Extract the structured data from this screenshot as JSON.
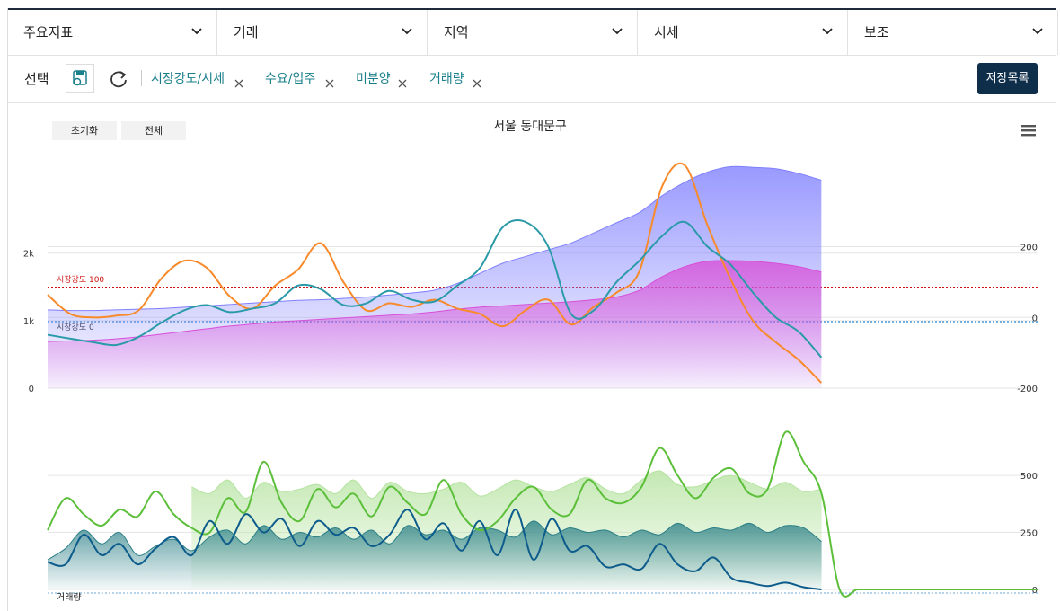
{
  "tabs": [
    "주요지표",
    "거래",
    "지역",
    "시세",
    "보조"
  ],
  "toolbar": {
    "label": "선택",
    "chips": [
      "시장강도/시세",
      "수요/입주",
      "미분양",
      "거래량"
    ],
    "save": "저장목록"
  },
  "chart_buttons": [
    "초기화",
    "전체"
  ],
  "chart_data": [
    {
      "type": "line",
      "title": "서울 동대문구",
      "x": [
        0,
        1,
        2,
        3,
        4,
        5,
        6,
        7,
        8,
        9,
        10,
        11,
        12,
        13,
        14,
        15,
        16,
        17,
        18,
        19,
        20,
        21,
        22,
        23,
        24,
        25,
        26,
        27,
        28,
        29,
        30,
        31,
        32,
        33,
        34
      ],
      "xlim": [
        0,
        43.5
      ],
      "ylim": [
        0,
        3300
      ],
      "yticks": [
        0,
        {
          "value": 1000,
          "label": "1k"
        },
        {
          "value": 2000,
          "label": "2k"
        }
      ],
      "y2lim": [
        -200,
        430
      ],
      "y2ticks": [
        -200,
        0,
        200
      ],
      "grid": true,
      "annotations": [
        {
          "label": "시장강도 100",
          "y2": 85,
          "color": "#d01010"
        },
        {
          "label": "시장강도 0",
          "y2": -12,
          "color": "#4a9ad8"
        }
      ],
      "series": [
        {
          "kind": "area",
          "color": "#8080ff",
          "values": [
            1160,
            1150,
            1150,
            1160,
            1170,
            1180,
            1200,
            1220,
            1240,
            1260,
            1280,
            1300,
            1310,
            1330,
            1350,
            1380,
            1410,
            1450,
            1550,
            1700,
            1850,
            1950,
            2050,
            2150,
            2300,
            2450,
            2600,
            2850,
            3050,
            3200,
            3280,
            3270,
            3250,
            3180,
            3080
          ]
        },
        {
          "kind": "area",
          "color": "#d84fd8",
          "values": [
            690,
            700,
            710,
            730,
            760,
            800,
            840,
            880,
            920,
            950,
            980,
            1000,
            1020,
            1040,
            1060,
            1080,
            1100,
            1130,
            1170,
            1200,
            1220,
            1240,
            1260,
            1280,
            1310,
            1350,
            1450,
            1650,
            1800,
            1880,
            1890,
            1880,
            1850,
            1800,
            1720
          ]
        },
        {
          "kind": "line",
          "axis": "y2",
          "color": "#f78a2a",
          "values": [
            64,
            10,
            0,
            5,
            20,
            110,
            160,
            140,
            60,
            25,
            90,
            135,
            210,
            100,
            20,
            40,
            30,
            50,
            25,
            10,
            -25,
            20,
            50,
            -20,
            30,
            70,
            130,
            370,
            430,
            260,
            110,
            -10,
            -70,
            -120,
            -185
          ]
        },
        {
          "kind": "line",
          "axis": "y2",
          "color": "#2b9aa8",
          "values": [
            -49,
            -60,
            -70,
            -78,
            -55,
            -15,
            20,
            35,
            15,
            25,
            40,
            90,
            80,
            35,
            40,
            75,
            50,
            45,
            90,
            140,
            255,
            270,
            200,
            10,
            20,
            100,
            160,
            230,
            270,
            200,
            150,
            70,
            0,
            -40,
            -113
          ]
        }
      ]
    },
    {
      "type": "line",
      "annotation": "거래량",
      "x": [
        0,
        1,
        2,
        3,
        4,
        5,
        6,
        7,
        8,
        9,
        10,
        11,
        12,
        13,
        14,
        15,
        16,
        17,
        18,
        19,
        20,
        21,
        22,
        23,
        24,
        25,
        26,
        27,
        28,
        29,
        30,
        31,
        32,
        33,
        34,
        35,
        36,
        37,
        38,
        39,
        40,
        41,
        42,
        43,
        44,
        45,
        46,
        47,
        48,
        49,
        50,
        51,
        52,
        53,
        54,
        55
      ],
      "xlim": [
        0,
        55
      ],
      "ylim": [
        0,
        725
      ],
      "yticks": [
        0,
        250,
        500
      ],
      "grid": true,
      "series": [
        {
          "kind": "area",
          "color": "#b5e3a0",
          "values": [
            null,
            null,
            null,
            null,
            null,
            null,
            null,
            null,
            450,
            420,
            480,
            400,
            470,
            430,
            440,
            460,
            420,
            480,
            400,
            470,
            430,
            420,
            440,
            470,
            410,
            440,
            480,
            450,
            430,
            460,
            490,
            440,
            420,
            480,
            520,
            460,
            450,
            480,
            500,
            470,
            440,
            470,
            430,
            440,
            null,
            null,
            null,
            null,
            null,
            null,
            null,
            null,
            null,
            null,
            null,
            null
          ]
        },
        {
          "kind": "area",
          "color": "#2a7f86",
          "values": [
            130,
            180,
            260,
            200,
            250,
            150,
            190,
            220,
            170,
            230,
            260,
            200,
            280,
            220,
            250,
            230,
            270,
            220,
            260,
            200,
            280,
            240,
            260,
            220,
            270,
            260,
            230,
            300,
            240,
            270,
            250,
            260,
            230,
            260,
            240,
            290,
            250,
            270,
            260,
            290,
            250,
            280,
            270,
            210,
            null,
            null,
            null,
            null,
            null,
            null,
            null,
            null,
            null,
            null,
            null,
            null
          ]
        },
        {
          "kind": "line",
          "color": "#5cbf3a",
          "values": [
            260,
            400,
            330,
            280,
            350,
            320,
            430,
            330,
            270,
            250,
            400,
            340,
            560,
            380,
            300,
            440,
            360,
            420,
            320,
            450,
            380,
            330,
            480,
            330,
            260,
            300,
            400,
            450,
            350,
            330,
            480,
            400,
            380,
            450,
            620,
            500,
            400,
            490,
            530,
            420,
            440,
            690,
            560,
            420,
            0,
            0,
            0,
            0,
            0,
            0,
            0,
            0,
            0,
            0,
            0,
            0
          ]
        },
        {
          "kind": "line",
          "color": "#0d5c8c",
          "values": [
            120,
            110,
            240,
            150,
            200,
            110,
            180,
            230,
            150,
            300,
            200,
            330,
            250,
            310,
            190,
            300,
            240,
            270,
            190,
            240,
            350,
            220,
            290,
            170,
            300,
            150,
            350,
            130,
            310,
            170,
            190,
            100,
            110,
            90,
            200,
            110,
            80,
            140,
            50,
            30,
            15,
            30,
            10,
            0,
            null,
            null,
            null,
            null,
            null,
            null,
            null,
            null,
            null,
            null,
            null,
            null
          ]
        }
      ]
    }
  ]
}
